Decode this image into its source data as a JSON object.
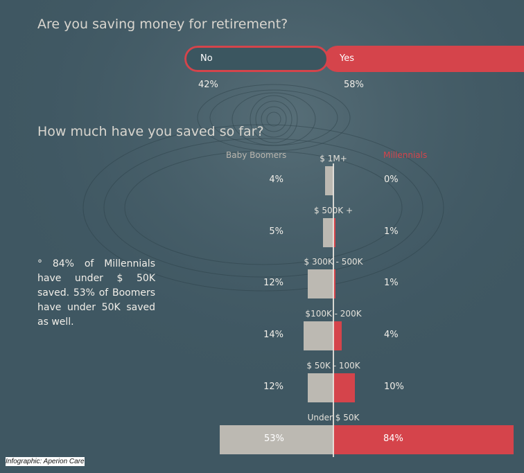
{
  "q1": {
    "title": "Are you saving money for retirement?",
    "no_label": "No",
    "yes_label": "Yes",
    "no_pct": "42%",
    "yes_pct": "58%"
  },
  "q2": {
    "title": "How much have you saved so far?",
    "left_header": "Baby Boomers",
    "right_header": "Millennials"
  },
  "note": "° 84% of Millennials have under $ 50K saved. 53% of Boomers have under 50K saved as well.",
  "credit": "Infographic: Aperion Care",
  "colors": {
    "background": "#3f5762",
    "boomers": "#bcb9b2",
    "millennials": "#d5444b"
  },
  "chart_data": {
    "type": "bar",
    "title": "How much have you saved so far?",
    "categories": [
      "$ 1M+",
      "$ 500K +",
      "$ 300K - 500K",
      "$100K - 200K",
      "$ 50K - 100K",
      "Under $ 50K"
    ],
    "series": [
      {
        "name": "Baby Boomers",
        "values": [
          4,
          5,
          12,
          14,
          12,
          53
        ],
        "labels": [
          "4%",
          "5%",
          "12%",
          "14%",
          "12%",
          "53%"
        ]
      },
      {
        "name": "Millennials",
        "values": [
          0,
          1,
          1,
          4,
          10,
          84
        ],
        "labels": [
          "0%",
          "1%",
          "1%",
          "4%",
          "10%",
          "84%"
        ]
      }
    ]
  }
}
